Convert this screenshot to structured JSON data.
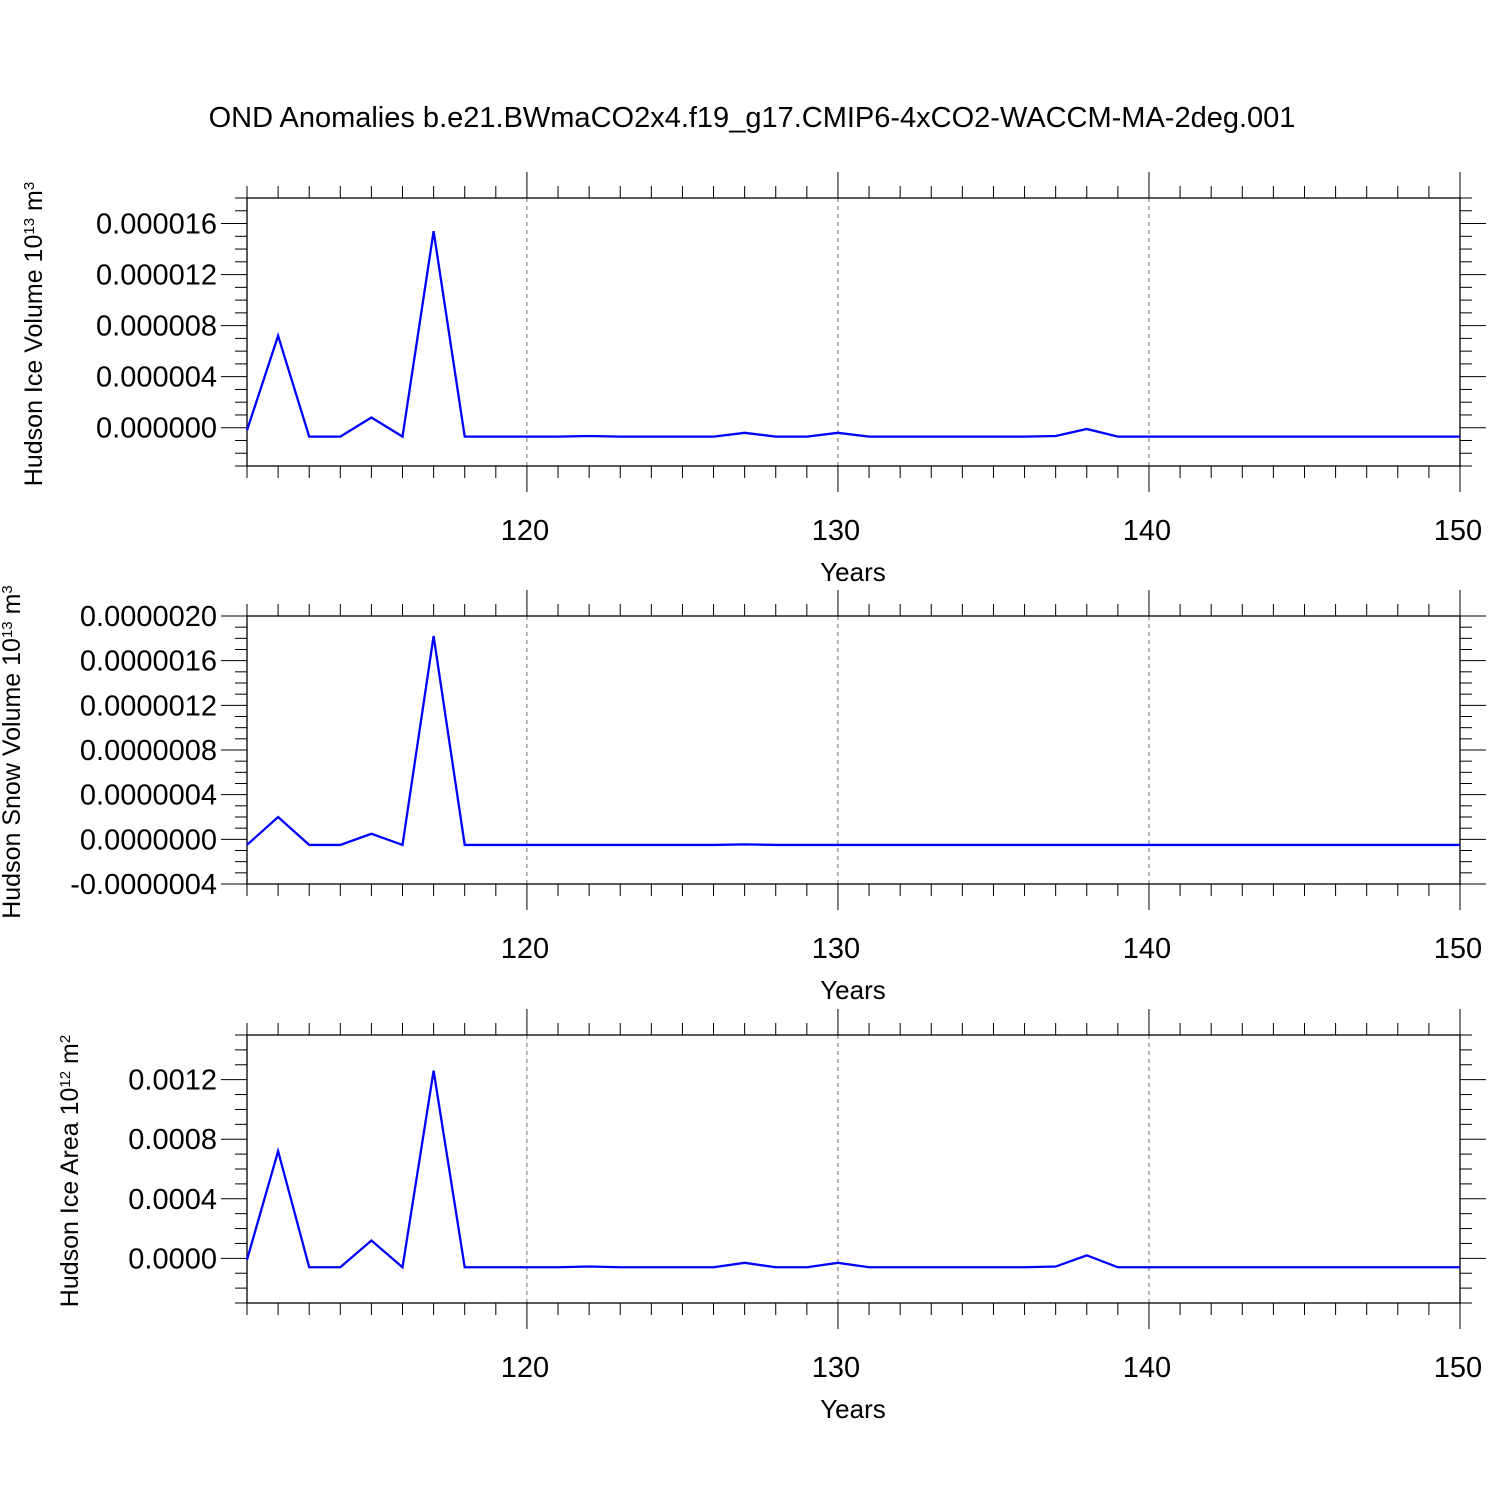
{
  "title": "OND Anomalies b.e21.BWmaCO2x4.f19_g17.CMIP6-4xCO2-WACCM-MA-2deg.001",
  "line_color": "#0000ff",
  "grid_color": "#000000",
  "chart_data": [
    {
      "type": "line",
      "ylabel": "Hudson Ice Volume 10",
      "ylabel_exp": "13",
      "ylabel_unit": " m",
      "ylabel_unit_exp": "3",
      "xlabel": "Years",
      "xlim": [
        111,
        150
      ],
      "ylim": [
        -3e-06,
        1.8e-05
      ],
      "x_ticks": [
        120,
        130,
        140,
        150
      ],
      "y_ticks": [
        0.0,
        4e-06,
        8e-06,
        1.2e-05,
        1.6e-05
      ],
      "y_tick_labels": [
        "0.000000",
        "0.000004",
        "0.000008",
        "0.000012",
        "0.000016"
      ],
      "y_minor_step": 1e-06,
      "grid": "dashed vertical at major x ticks",
      "x": [
        111,
        112,
        113,
        114,
        115,
        116,
        117,
        118,
        119,
        120,
        121,
        122,
        123,
        124,
        125,
        126,
        127,
        128,
        129,
        130,
        131,
        132,
        133,
        134,
        135,
        136,
        137,
        138,
        139,
        140,
        141,
        142,
        143,
        144,
        145,
        146,
        147,
        148,
        149,
        150
      ],
      "series": [
        {
          "values": [
            -2e-07,
            7.2e-06,
            -7e-07,
            -7e-07,
            8e-07,
            -7e-07,
            1.54e-05,
            -7e-07,
            -7e-07,
            -7e-07,
            -7e-07,
            -6.5e-07,
            -7e-07,
            -7e-07,
            -7e-07,
            -7e-07,
            -4e-07,
            -7e-07,
            -7e-07,
            -4e-07,
            -7e-07,
            -7e-07,
            -7e-07,
            -7e-07,
            -7e-07,
            -7e-07,
            -6.5e-07,
            -1e-07,
            -7e-07,
            -7e-07,
            -7e-07,
            -7e-07,
            -7e-07,
            -7e-07,
            -7e-07,
            -7e-07,
            -7e-07,
            -7e-07,
            -7e-07,
            -7e-07
          ]
        }
      ]
    },
    {
      "type": "line",
      "ylabel": "Hudson Snow Volume 10",
      "ylabel_exp": "13",
      "ylabel_unit": " m",
      "ylabel_unit_exp": "3",
      "xlabel": "Years",
      "xlim": [
        111,
        150
      ],
      "ylim": [
        -4e-07,
        2e-06
      ],
      "x_ticks": [
        120,
        130,
        140,
        150
      ],
      "y_ticks": [
        -4e-07,
        0.0,
        4e-07,
        8e-07,
        1.2e-06,
        1.6e-06,
        2e-06
      ],
      "y_tick_labels": [
        "-0.0000004",
        "0.0000000",
        "0.0000004",
        "0.0000008",
        "0.0000012",
        "0.0000016",
        "0.0000020"
      ],
      "y_minor_step": 1e-07,
      "grid": "dashed vertical at major x ticks",
      "x": [
        111,
        112,
        113,
        114,
        115,
        116,
        117,
        118,
        119,
        120,
        121,
        122,
        123,
        124,
        125,
        126,
        127,
        128,
        129,
        130,
        131,
        132,
        133,
        134,
        135,
        136,
        137,
        138,
        139,
        140,
        141,
        142,
        143,
        144,
        145,
        146,
        147,
        148,
        149,
        150
      ],
      "series": [
        {
          "values": [
            -5e-08,
            2e-07,
            -5e-08,
            -5e-08,
            5e-08,
            -5e-08,
            1.82e-06,
            -5e-08,
            -5e-08,
            -5e-08,
            -5e-08,
            -5e-08,
            -5e-08,
            -5e-08,
            -5e-08,
            -5e-08,
            -4.5e-08,
            -5e-08,
            -5e-08,
            -5e-08,
            -5e-08,
            -5e-08,
            -5e-08,
            -5e-08,
            -5e-08,
            -5e-08,
            -5e-08,
            -5e-08,
            -5e-08,
            -5e-08,
            -5e-08,
            -5e-08,
            -5e-08,
            -5e-08,
            -5e-08,
            -5e-08,
            -5e-08,
            -5e-08,
            -5e-08,
            -5e-08
          ]
        }
      ]
    },
    {
      "type": "line",
      "ylabel": "Hudson Ice Area 10",
      "ylabel_exp": "12",
      "ylabel_unit": " m",
      "ylabel_unit_exp": "2",
      "xlabel": "Years",
      "xlim": [
        111,
        150
      ],
      "ylim": [
        -0.0003,
        0.0015
      ],
      "x_ticks": [
        120,
        130,
        140,
        150
      ],
      "y_ticks": [
        0.0,
        0.0004,
        0.0008,
        0.0012
      ],
      "y_tick_labels": [
        "0.0000",
        "0.0004",
        "0.0008",
        "0.0012"
      ],
      "y_minor_step": 0.0001,
      "grid": "dashed vertical at major x ticks",
      "x": [
        111,
        112,
        113,
        114,
        115,
        116,
        117,
        118,
        119,
        120,
        121,
        122,
        123,
        124,
        125,
        126,
        127,
        128,
        129,
        130,
        131,
        132,
        133,
        134,
        135,
        136,
        137,
        138,
        139,
        140,
        141,
        142,
        143,
        144,
        145,
        146,
        147,
        148,
        149,
        150
      ],
      "series": [
        {
          "values": [
            -1e-05,
            0.00072,
            -6e-05,
            -6e-05,
            0.00012,
            -6e-05,
            0.00126,
            -6e-05,
            -6e-05,
            -6e-05,
            -6e-05,
            -5.5e-05,
            -6e-05,
            -6e-05,
            -6e-05,
            -6e-05,
            -3e-05,
            -6e-05,
            -6e-05,
            -3e-05,
            -6e-05,
            -6e-05,
            -6e-05,
            -6e-05,
            -6e-05,
            -6e-05,
            -5.5e-05,
            2e-05,
            -6e-05,
            -6e-05,
            -6e-05,
            -6e-05,
            -6e-05,
            -6e-05,
            -6e-05,
            -6e-05,
            -6e-05,
            -6e-05,
            -6e-05,
            -6e-05
          ]
        }
      ]
    }
  ]
}
